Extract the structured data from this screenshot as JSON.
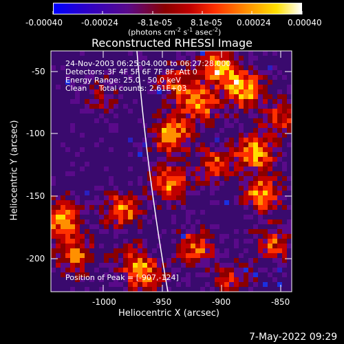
{
  "colorbar": {
    "ticks": [
      "-0.00040",
      "-0.00024",
      "-8.1e-05",
      "8.1e-05",
      "0.00024",
      "0.00040"
    ],
    "unit_label": "(photons cm",
    "unit_exp1": "-2",
    "unit_mid": " s",
    "unit_exp2": "-1",
    "unit_end": " asec",
    "unit_exp3": "-2",
    "unit_close": ")",
    "stops": [
      "#0000ff",
      "#2a00cc",
      "#5a0a8a",
      "#8a0000",
      "#c00000",
      "#ff3000",
      "#ff9000",
      "#ffe000",
      "#ffffff"
    ]
  },
  "title": "Reconstructed RHESSI Image",
  "info": {
    "line1": "24-Nov-2003 06:25:04.000 to 06:27:28.000",
    "line2": "Detectors: 3F 4F 5F 6F 7F 8F, Att 0",
    "line3": "Energy Range: 25.0 - 50.0 keV",
    "line4": "Clean     Total counts: 2.61E+03"
  },
  "peak_label": "Position of Peak = [-907,-124]",
  "xaxis": {
    "label": "Heliocentric X (arcsec)",
    "ticks": [
      "-1000",
      "-950",
      "-900",
      "-850"
    ]
  },
  "yaxis": {
    "label": "Heliocentric Y (arcsec)",
    "ticks": [
      "-50",
      "-100",
      "-150",
      "-200"
    ]
  },
  "timestamp": "7-May-2022 09:29",
  "palette": {
    "low": "#3a0a6e",
    "mid": "#8a0000",
    "high": "#ff3000",
    "peak": "#ffe000"
  }
}
